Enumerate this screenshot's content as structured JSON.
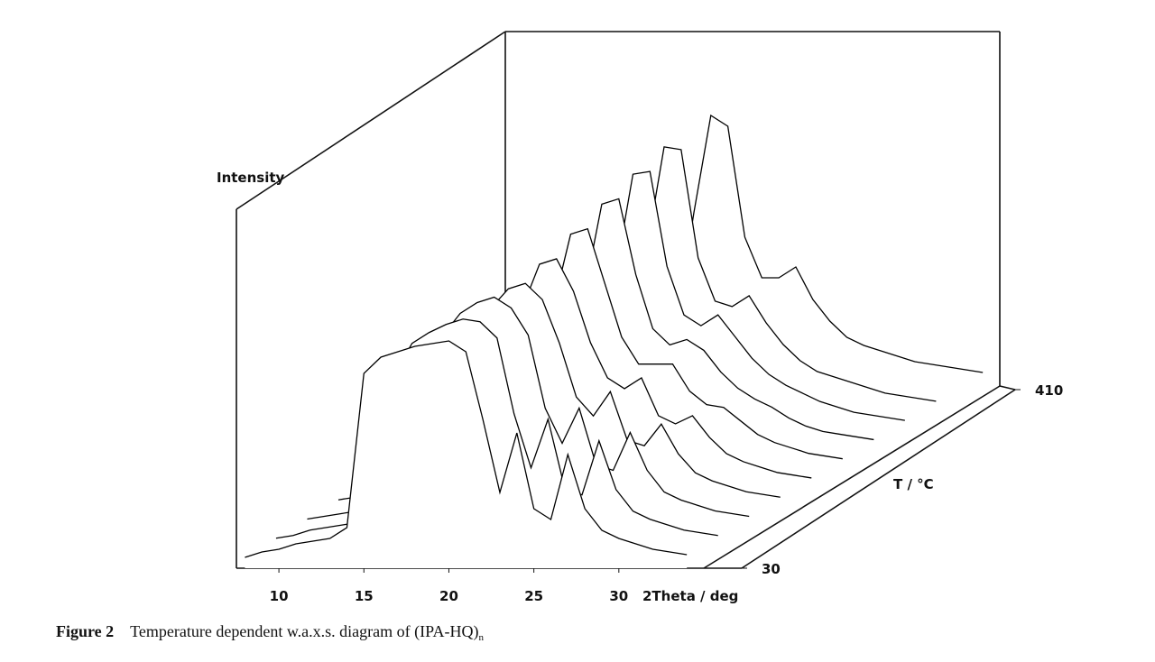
{
  "chart_data": {
    "type": "waterfall",
    "ylabel": "Intensity",
    "xlabel": "2Theta / deg",
    "zlabel": "T / °C",
    "color": "#000000",
    "x": [
      8,
      9,
      10,
      11,
      12,
      13,
      14,
      15,
      16,
      17,
      18,
      19,
      20,
      21,
      22,
      23,
      24,
      25,
      26,
      27,
      28,
      29,
      30,
      31,
      32,
      33,
      34
    ],
    "xlim": [
      7.5,
      35
    ],
    "xticks": [
      10,
      15,
      20,
      25,
      30
    ],
    "ylim": [
      0,
      100
    ],
    "zlim": [
      30,
      410
    ],
    "zticks": [
      30,
      410
    ],
    "series": [
      {
        "t": 30,
        "values": [
          4,
          6,
          7,
          9,
          10,
          11,
          15,
          72,
          78,
          80,
          82,
          83,
          84,
          80,
          55,
          28,
          50,
          22,
          18,
          42,
          22,
          14,
          11,
          9,
          7,
          6,
          5
        ]
      },
      {
        "t": 70,
        "values": [
          4,
          5,
          7,
          8,
          9,
          10,
          14,
          65,
          76,
          80,
          83,
          85,
          84,
          78,
          50,
          30,
          48,
          22,
          20,
          40,
          22,
          14,
          11,
          9,
          7,
          6,
          5
        ]
      },
      {
        "t": 110,
        "values": [
          4,
          5,
          6,
          7,
          8,
          9,
          12,
          50,
          72,
          80,
          84,
          86,
          82,
          72,
          45,
          32,
          45,
          24,
          22,
          36,
          22,
          14,
          11,
          9,
          7,
          6,
          5
        ]
      },
      {
        "t": 150,
        "values": [
          4,
          5,
          6,
          7,
          8,
          9,
          11,
          35,
          60,
          75,
          82,
          84,
          78,
          62,
          42,
          35,
          44,
          26,
          24,
          32,
          21,
          14,
          11,
          9,
          7,
          6,
          5
        ]
      },
      {
        "t": 190,
        "values": [
          4,
          5,
          6,
          7,
          8,
          9,
          10,
          22,
          45,
          68,
          84,
          86,
          74,
          55,
          42,
          38,
          42,
          28,
          25,
          28,
          20,
          14,
          11,
          9,
          7,
          6,
          5
        ]
      },
      {
        "t": 230,
        "values": [
          4,
          5,
          6,
          7,
          8,
          9,
          10,
          16,
          34,
          62,
          88,
          90,
          70,
          50,
          40,
          40,
          40,
          30,
          25,
          24,
          19,
          14,
          11,
          9,
          7,
          6,
          5
        ]
      },
      {
        "t": 270,
        "values": [
          4,
          5,
          6,
          7,
          8,
          9,
          10,
          14,
          28,
          60,
          92,
          94,
          66,
          46,
          40,
          42,
          38,
          30,
          24,
          20,
          17,
          13,
          10,
          8,
          7,
          6,
          5
        ]
      },
      {
        "t": 310,
        "values": [
          4,
          5,
          6,
          7,
          8,
          9,
          10,
          13,
          25,
          60,
          96,
          97,
          62,
          44,
          40,
          44,
          36,
          28,
          22,
          18,
          15,
          12,
          10,
          8,
          7,
          6,
          5
        ]
      },
      {
        "t": 350,
        "values": [
          4,
          5,
          6,
          7,
          8,
          9,
          10,
          12,
          24,
          62,
          99,
          98,
          58,
          42,
          40,
          44,
          34,
          26,
          20,
          16,
          14,
          12,
          10,
          8,
          7,
          6,
          5
        ]
      },
      {
        "t": 410,
        "values": [
          4,
          5,
          6,
          7,
          8,
          9,
          10,
          12,
          24,
          64,
          100,
          96,
          55,
          40,
          40,
          44,
          32,
          24,
          18,
          15,
          13,
          11,
          9,
          8,
          7,
          6,
          5
        ]
      }
    ]
  },
  "caption": {
    "label": "Figure 2",
    "text": "Temperature dependent w.a.x.s. diagram of (IPA-HQ)",
    "subscript": "n"
  }
}
